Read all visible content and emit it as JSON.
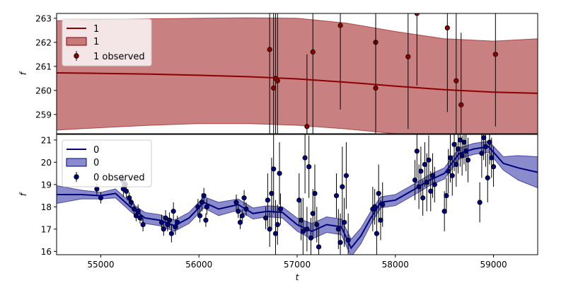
{
  "chart_data": {
    "type": "line",
    "xlabel": "t",
    "xlim": [
      54550,
      59450
    ],
    "xticks": [
      55000,
      56000,
      57000,
      58000,
      59000
    ],
    "panels": [
      {
        "name": "top",
        "ylabel": "f",
        "ylim": [
          258.2,
          263.2
        ],
        "yticks": [
          259,
          260,
          261,
          262,
          263
        ],
        "color": "#8b0000",
        "band_color": "#a83232",
        "legend": {
          "placement": "upper-left",
          "entries": [
            "1",
            "1",
            "1 observed"
          ]
        },
        "model": {
          "x": [
            54550,
            55000,
            55500,
            56000,
            56500,
            57000,
            57500,
            58000,
            58500,
            59000,
            59450
          ],
          "y": [
            260.73,
            260.71,
            260.68,
            260.63,
            260.57,
            260.48,
            260.34,
            260.18,
            260.03,
            259.93,
            259.88
          ],
          "upper": [
            262.9,
            262.95,
            262.98,
            263.0,
            263.02,
            263.0,
            262.8,
            262.45,
            262.15,
            262.05,
            262.15
          ],
          "lower": [
            258.35,
            258.45,
            258.55,
            258.62,
            258.62,
            258.55,
            258.4,
            258.2,
            258.2,
            258.2,
            258.2
          ]
        },
        "observed": {
          "x": [
            56720,
            56760,
            56780,
            56800,
            57100,
            57160,
            57440,
            57800,
            57800,
            58130,
            58220,
            58530,
            58620,
            58670,
            59020
          ],
          "y": [
            261.7,
            260.1,
            260.5,
            260.4,
            258.5,
            261.6,
            262.7,
            262.0,
            260.1,
            261.4,
            263.2,
            262.6,
            260.4,
            259.4,
            261.5
          ],
          "err": [
            3.5,
            4.5,
            3.5,
            3.5,
            3.0,
            3.5,
            3.5,
            3.5,
            3.0,
            3.0,
            3.0,
            3.5,
            3.0,
            3.0,
            3.0
          ]
        }
      },
      {
        "name": "bottom",
        "ylabel": "f",
        "ylim": [
          15.85,
          21.25
        ],
        "yticks": [
          16,
          17,
          18,
          19,
          20,
          21
        ],
        "color": "#00007a",
        "band_color": "#4a4db0",
        "legend": {
          "placement": "upper-left",
          "entries": [
            "0",
            "0",
            "0 observed"
          ]
        },
        "model": {
          "x": [
            54550,
            54800,
            55000,
            55150,
            55300,
            55450,
            55600,
            55750,
            55900,
            56050,
            56200,
            56400,
            56550,
            56700,
            56850,
            57000,
            57150,
            57300,
            57450,
            57550,
            57650,
            57750,
            57850,
            58000,
            58200,
            58350,
            58500,
            58650,
            58800,
            58950,
            59100,
            59250,
            59450
          ],
          "y": [
            18.55,
            18.55,
            18.5,
            18.6,
            18.0,
            17.5,
            17.4,
            17.15,
            17.5,
            18.2,
            17.9,
            18.1,
            17.7,
            17.8,
            17.75,
            17.2,
            16.9,
            17.2,
            17.1,
            16.15,
            16.7,
            17.5,
            18.2,
            18.3,
            18.8,
            19.2,
            19.5,
            20.4,
            20.6,
            20.7,
            19.95,
            19.75,
            19.55
          ],
          "upper": [
            18.95,
            18.75,
            18.65,
            18.8,
            18.2,
            17.75,
            17.65,
            17.4,
            17.75,
            18.45,
            18.2,
            18.35,
            17.95,
            18.05,
            18.0,
            17.5,
            17.25,
            17.55,
            17.45,
            16.55,
            17.05,
            17.8,
            18.45,
            18.55,
            19.05,
            19.45,
            19.75,
            20.65,
            20.85,
            20.95,
            20.25,
            20.3,
            20.25
          ],
          "lower": [
            18.15,
            18.35,
            18.35,
            18.4,
            17.8,
            17.25,
            17.15,
            16.9,
            17.25,
            17.95,
            17.6,
            17.85,
            17.45,
            17.55,
            17.5,
            16.9,
            16.55,
            16.85,
            16.75,
            15.75,
            16.35,
            17.2,
            17.95,
            18.05,
            18.55,
            18.95,
            19.25,
            20.15,
            20.35,
            20.45,
            19.65,
            19.2,
            18.85
          ]
        },
        "observed": {
          "x": [
            54960,
            55000,
            55220,
            55230,
            55250,
            55260,
            55290,
            55310,
            55340,
            55360,
            55380,
            55400,
            55430,
            55620,
            55640,
            55660,
            55680,
            55700,
            55720,
            55740,
            55760,
            55780,
            55990,
            56010,
            56030,
            56050,
            56070,
            56080,
            56380,
            56400,
            56420,
            56440,
            56460,
            56480,
            56680,
            56700,
            56720,
            56740,
            56760,
            56780,
            56800,
            56820,
            56830,
            57020,
            57040,
            57060,
            57080,
            57100,
            57120,
            57140,
            57160,
            57180,
            57200,
            57220,
            57400,
            57420,
            57440,
            57460,
            57480,
            57500,
            57520,
            57770,
            57790,
            57810,
            57830,
            57850,
            57870,
            58200,
            58220,
            58240,
            58260,
            58280,
            58300,
            58320,
            58340,
            58360,
            58380,
            58400,
            58500,
            58520,
            58540,
            58560,
            58580,
            58600,
            58620,
            58640,
            58660,
            58680,
            58700,
            58720,
            58740,
            58860,
            58880,
            58900,
            58920,
            58940,
            58960,
            58980,
            59000
          ],
          "y": [
            18.8,
            18.4,
            19.2,
            18.8,
            19.0,
            18.7,
            18.4,
            18.2,
            17.9,
            17.6,
            17.8,
            17.5,
            17.2,
            17.3,
            17.0,
            17.5,
            17.2,
            17.4,
            16.8,
            17.8,
            17.1,
            17.3,
            18.0,
            17.6,
            18.2,
            18.5,
            17.4,
            18.0,
            18.2,
            17.8,
            17.3,
            17.6,
            18.4,
            17.9,
            17.5,
            18.3,
            17.0,
            18.6,
            19.7,
            16.8,
            17.2,
            19.5,
            17.9,
            18.3,
            17.4,
            16.9,
            20.2,
            17.0,
            19.8,
            16.6,
            17.7,
            18.6,
            17.2,
            16.2,
            18.5,
            17.0,
            16.4,
            18.9,
            17.3,
            19.4,
            16.5,
            17.9,
            18.0,
            16.8,
            18.6,
            17.4,
            18.1,
            19.2,
            20.5,
            18.9,
            19.6,
            18.4,
            19.9,
            19.1,
            20.1,
            18.7,
            19.4,
            19.0,
            17.8,
            18.5,
            19.6,
            20.2,
            19.4,
            20.8,
            19.9,
            20.6,
            21.0,
            20.3,
            20.9,
            20.5,
            20.1,
            18.2,
            20.4,
            21.1,
            20.7,
            19.3,
            20.9,
            20.2,
            19.8
          ],
          "err": [
            0.25,
            0.25,
            0.3,
            0.35,
            0.3,
            0.3,
            0.25,
            0.25,
            0.25,
            0.25,
            0.3,
            0.25,
            0.3,
            0.35,
            0.3,
            0.35,
            0.3,
            0.35,
            0.4,
            0.4,
            0.35,
            0.3,
            0.35,
            0.3,
            0.4,
            0.35,
            0.3,
            0.35,
            0.35,
            0.3,
            0.3,
            0.3,
            0.35,
            0.3,
            0.5,
            1.2,
            0.8,
            1.6,
            2.0,
            1.5,
            0.9,
            1.4,
            0.7,
            1.2,
            0.9,
            1.5,
            1.6,
            1.0,
            1.4,
            0.9,
            1.1,
            1.3,
            0.8,
            0.9,
            1.0,
            0.9,
            1.3,
            1.8,
            1.1,
            1.5,
            1.2,
            1.0,
            0.8,
            1.1,
            1.3,
            0.9,
            1.0,
            0.9,
            1.2,
            1.0,
            1.1,
            0.8,
            1.0,
            1.3,
            1.1,
            0.9,
            1.0,
            0.8,
            0.9,
            0.8,
            1.0,
            1.1,
            0.9,
            1.2,
            1.0,
            1.1,
            1.2,
            0.9,
            1.0,
            0.9,
            1.0,
            0.9,
            1.1,
            1.0,
            0.9,
            1.1,
            1.0,
            0.9,
            0.9
          ]
        }
      }
    ]
  }
}
